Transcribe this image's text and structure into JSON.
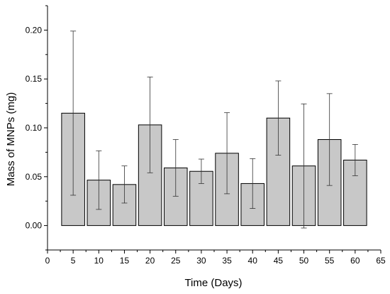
{
  "chart_data": {
    "type": "bar",
    "xlabel": "Time (Days)",
    "ylabel": "Mass of MNPs (mg)",
    "xlim": [
      0,
      65
    ],
    "ylim": [
      -0.025,
      0.225
    ],
    "xticks": [
      "0",
      "5",
      "10",
      "15",
      "20",
      "25",
      "30",
      "35",
      "40",
      "45",
      "50",
      "55",
      "60",
      "65"
    ],
    "yticks": [
      "0.00",
      "0.05",
      "0.10",
      "0.15",
      "0.20"
    ],
    "x": [
      5,
      10,
      15,
      20,
      25,
      30,
      35,
      40,
      45,
      50,
      55,
      60
    ],
    "values": [
      0.115,
      0.0465,
      0.042,
      0.103,
      0.059,
      0.0555,
      0.074,
      0.043,
      0.11,
      0.061,
      0.088,
      0.067
    ],
    "errors": [
      0.084,
      0.03,
      0.019,
      0.049,
      0.029,
      0.0125,
      0.0415,
      0.0255,
      0.038,
      0.0635,
      0.047,
      0.016
    ],
    "bar_width_days": 4.5,
    "bar_color": "#c8c8c8",
    "edge_color": "#000000",
    "grid": false,
    "legend": "none"
  }
}
